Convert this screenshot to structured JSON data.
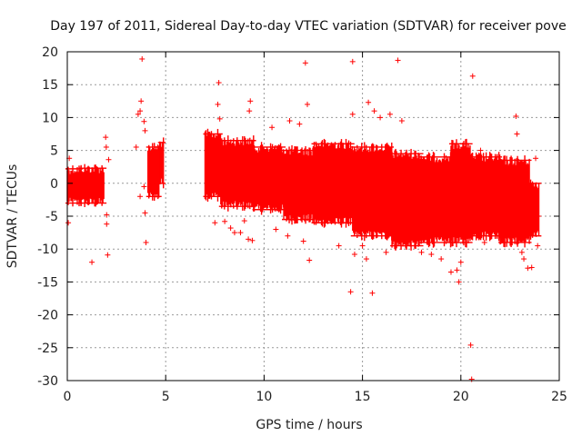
{
  "chart_data": {
    "type": "scatter",
    "title": "Day 197 of 2011, Sidereal Day-to-day VTEC variation (SDTVAR) for receiver pove",
    "xlabel": "GPS time / hours",
    "ylabel": "SDTVAR / TECUs",
    "xlim": [
      0,
      25
    ],
    "ylim": [
      -30,
      20
    ],
    "x_ticks": [
      0,
      5,
      10,
      15,
      20,
      25
    ],
    "y_ticks": [
      -30,
      -25,
      -20,
      -15,
      -10,
      -5,
      0,
      5,
      10,
      15,
      20
    ],
    "grid": true,
    "marker": "+",
    "series_color": "#ff0000",
    "bands": [
      {
        "x0": 0.0,
        "x1": 0.7,
        "lo": -3,
        "hi": 2.2
      },
      {
        "x0": 0.7,
        "x1": 1.9,
        "lo": -3,
        "hi": 2.3
      },
      {
        "x0": 4.1,
        "x1": 4.7,
        "lo": -2,
        "hi": 5.5
      },
      {
        "x0": 4.7,
        "x1": 4.9,
        "lo": 0,
        "hi": 6.2
      },
      {
        "x0": 7.0,
        "x1": 7.8,
        "lo": -2,
        "hi": 7.5
      },
      {
        "x0": 7.8,
        "x1": 9.5,
        "lo": -3.5,
        "hi": 6.5
      },
      {
        "x0": 9.5,
        "x1": 11.0,
        "lo": -4,
        "hi": 5.5
      },
      {
        "x0": 11.0,
        "x1": 12.5,
        "lo": -5.5,
        "hi": 5.0
      },
      {
        "x0": 12.5,
        "x1": 14.5,
        "lo": -6,
        "hi": 6.0
      },
      {
        "x0": 14.5,
        "x1": 16.5,
        "lo": -8,
        "hi": 5.5
      },
      {
        "x0": 16.5,
        "x1": 18.0,
        "lo": -9.5,
        "hi": 4.5
      },
      {
        "x0": 18.0,
        "x1": 19.5,
        "lo": -9,
        "hi": 4.0
      },
      {
        "x0": 19.5,
        "x1": 20.5,
        "lo": -9,
        "hi": 6.0
      },
      {
        "x0": 20.5,
        "x1": 22.0,
        "lo": -8,
        "hi": 4.0
      },
      {
        "x0": 22.0,
        "x1": 23.5,
        "lo": -9,
        "hi": 3.5
      },
      {
        "x0": 23.5,
        "x1": 24.0,
        "lo": -8,
        "hi": 0
      }
    ],
    "outliers": [
      [
        0.05,
        -6
      ],
      [
        0.1,
        3.8
      ],
      [
        1.25,
        -12
      ],
      [
        1.95,
        7
      ],
      [
        1.98,
        5.5
      ],
      [
        2.0,
        -4.8
      ],
      [
        2.0,
        -6.2
      ],
      [
        2.05,
        -10.9
      ],
      [
        2.1,
        3.6
      ],
      [
        3.5,
        5.5
      ],
      [
        3.6,
        10.5
      ],
      [
        3.7,
        11
      ],
      [
        3.75,
        12.5
      ],
      [
        3.7,
        -2
      ],
      [
        3.8,
        18.9
      ],
      [
        3.9,
        9.4
      ],
      [
        3.95,
        8
      ],
      [
        3.95,
        -4.5
      ],
      [
        4.0,
        -9
      ],
      [
        3.9,
        -0.5
      ],
      [
        7.5,
        -6
      ],
      [
        7.65,
        12
      ],
      [
        7.7,
        15.3
      ],
      [
        7.75,
        9.8
      ],
      [
        8.0,
        -5.8
      ],
      [
        8.3,
        -6.8
      ],
      [
        8.5,
        -7.5
      ],
      [
        8.8,
        -7.5
      ],
      [
        9.0,
        -5.7
      ],
      [
        9.2,
        -8.5
      ],
      [
        9.25,
        11
      ],
      [
        9.3,
        12.5
      ],
      [
        9.4,
        -8.7
      ],
      [
        10.4,
        8.5
      ],
      [
        10.6,
        -7
      ],
      [
        11.2,
        -8
      ],
      [
        11.3,
        9.5
      ],
      [
        11.8,
        9
      ],
      [
        12.0,
        -8.8
      ],
      [
        12.1,
        18.3
      ],
      [
        12.2,
        12
      ],
      [
        12.3,
        -11.7
      ],
      [
        13.8,
        -9.5
      ],
      [
        14.4,
        -16.5
      ],
      [
        14.5,
        18.5
      ],
      [
        14.5,
        10.5
      ],
      [
        14.6,
        -10.8
      ],
      [
        15.0,
        -9.5
      ],
      [
        15.2,
        -11.5
      ],
      [
        15.3,
        12.3
      ],
      [
        15.5,
        -16.7
      ],
      [
        15.6,
        11
      ],
      [
        15.9,
        10
      ],
      [
        16.2,
        -10.5
      ],
      [
        16.4,
        10.5
      ],
      [
        16.8,
        18.7
      ],
      [
        17.0,
        9.5
      ],
      [
        17.2,
        -9.5
      ],
      [
        18.0,
        -10.5
      ],
      [
        18.5,
        -10.8
      ],
      [
        19.0,
        -11.5
      ],
      [
        19.5,
        -13.5
      ],
      [
        19.8,
        -13.2
      ],
      [
        19.9,
        -15
      ],
      [
        20.0,
        -12
      ],
      [
        20.5,
        -24.6
      ],
      [
        20.55,
        -29.8
      ],
      [
        20.6,
        16.3
      ],
      [
        21.0,
        5
      ],
      [
        21.2,
        -9
      ],
      [
        21.5,
        -8
      ],
      [
        22.3,
        -8
      ],
      [
        22.6,
        -9
      ],
      [
        22.8,
        10.2
      ],
      [
        22.85,
        7.5
      ],
      [
        23.1,
        -10.5
      ],
      [
        23.2,
        -11.5
      ],
      [
        23.4,
        -12.9
      ],
      [
        23.6,
        -12.8
      ],
      [
        23.8,
        3.8
      ],
      [
        23.9,
        -9.5
      ],
      [
        23.95,
        -5
      ]
    ]
  }
}
